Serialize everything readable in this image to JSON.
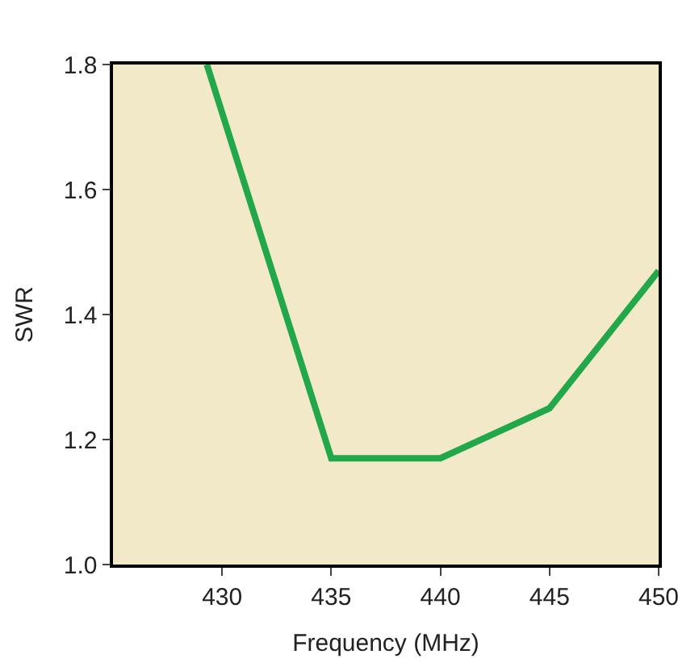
{
  "chart_data": {
    "type": "line",
    "xlabel": "Frequency (MHz)",
    "ylabel": "SWR",
    "x": [
      429.3,
      435,
      440,
      445,
      450
    ],
    "series": [
      {
        "color": "#22a84a",
        "values": [
          1.8,
          1.17,
          1.17,
          1.25,
          1.47
        ]
      }
    ],
    "xlim": [
      425,
      450
    ],
    "xticks": [
      430,
      435,
      440,
      445,
      450
    ],
    "ylim": [
      1.0,
      1.8
    ],
    "yticks": [
      {
        "value": 1.0,
        "label": "1.0"
      },
      {
        "value": 1.2,
        "label": "1.2"
      },
      {
        "value": 1.4,
        "label": "1.4"
      },
      {
        "value": 1.6,
        "label": "1.6"
      },
      {
        "value": 1.8,
        "label": "1.8"
      }
    ],
    "grid": false,
    "legend": false,
    "marker": "none",
    "line_style": "solid"
  }
}
